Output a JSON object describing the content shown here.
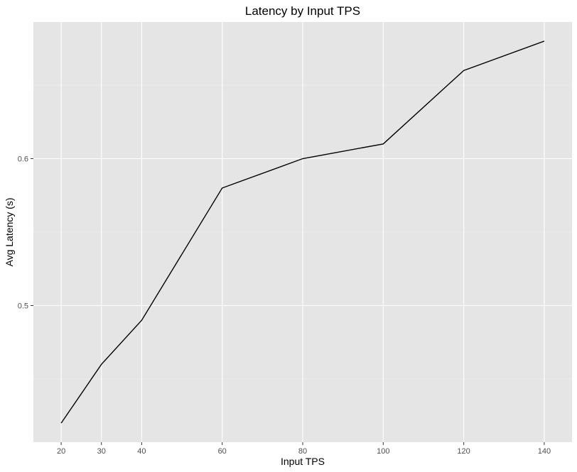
{
  "chart_data": {
    "type": "line",
    "title": "Latency by Input TPS",
    "xlabel": "Input TPS",
    "ylabel": "Avg Latency (s)",
    "x": [
      20,
      30,
      40,
      60,
      80,
      100,
      120,
      140
    ],
    "series": [
      {
        "values": [
          0.42,
          0.46,
          0.49,
          0.58,
          0.6,
          0.61,
          0.66,
          0.68
        ]
      }
    ],
    "xlim": [
      13.1,
      146.9
    ],
    "ylim": [
      0.407,
      0.693
    ],
    "x_ticks": [
      "20",
      "30",
      "40",
      "60",
      "80",
      "100",
      "120",
      "140"
    ],
    "y_ticks": [
      "0.5",
      "0.6"
    ],
    "grid": true,
    "legend": "none",
    "colors": {
      "panel": "#e5e5e5",
      "grid": "#ffffff",
      "line": "#000000"
    }
  }
}
